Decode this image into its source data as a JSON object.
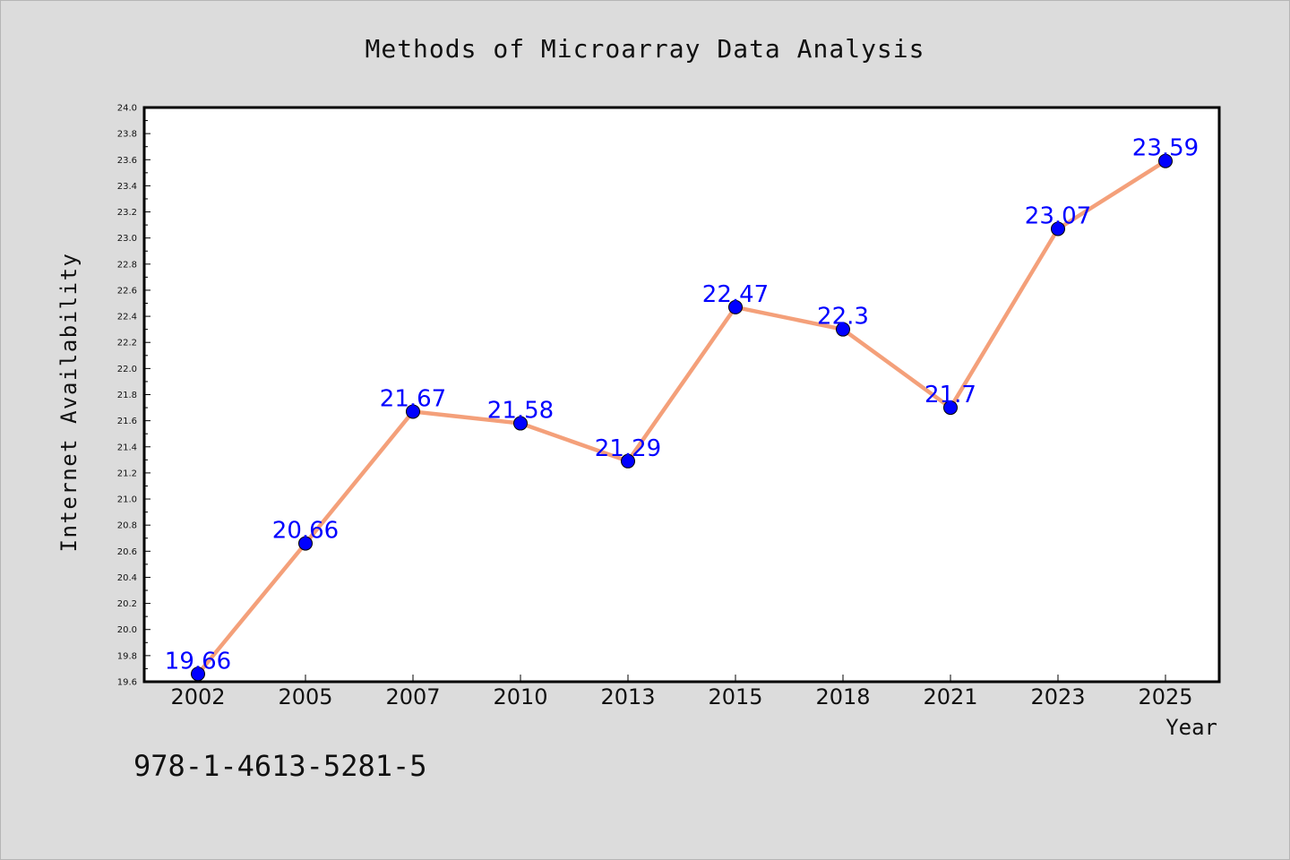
{
  "chart_data": {
    "type": "line",
    "title": "Methods of Microarray Data Analysis",
    "xlabel": "Year",
    "ylabel": "Internet Availability",
    "categories": [
      "2002",
      "2005",
      "2007",
      "2010",
      "2013",
      "2015",
      "2018",
      "2021",
      "2023",
      "2025"
    ],
    "series": [
      {
        "values": [
          19.66,
          20.66,
          21.67,
          21.58,
          21.29,
          22.47,
          22.3,
          21.7,
          23.07,
          23.59
        ],
        "data_labels": [
          "19.66",
          "20.66",
          "21.67",
          "21.58",
          "21.29",
          "22.47",
          "22.3",
          "21.7",
          "23.07",
          "23.59"
        ],
        "line_color": "#f4a07a",
        "marker_color": "#0000ff"
      }
    ],
    "ylim": [
      19.6,
      24.0
    ],
    "yticks": [
      "19.6",
      "19.8",
      "20.0",
      "20.2",
      "20.4",
      "20.6",
      "20.8",
      "21.0",
      "21.2",
      "21.4",
      "21.6",
      "21.8",
      "22.0",
      "22.2",
      "22.4",
      "22.6",
      "22.8",
      "23.0",
      "23.2",
      "23.4",
      "23.6",
      "23.8",
      "24.0"
    ],
    "grid": false,
    "legend": "none",
    "background": "#dcdcdc",
    "plot_background": "#ffffff",
    "label_color": "#0000ff"
  },
  "footer": {
    "isbn": "978-1-4613-5281-5"
  }
}
